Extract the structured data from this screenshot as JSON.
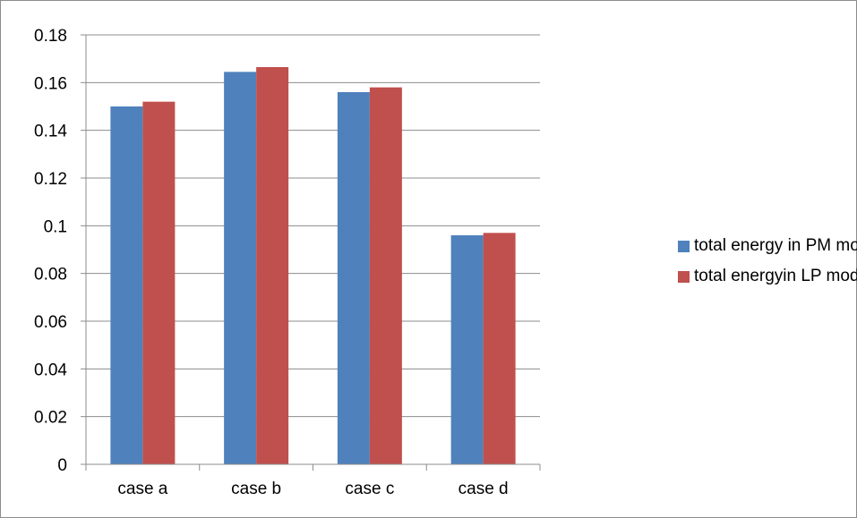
{
  "chart_data": {
    "type": "bar",
    "categories": [
      "case a",
      "case b",
      "case c",
      "case d"
    ],
    "series": [
      {
        "name": "total energy in PM model",
        "color": "#4f81bd",
        "values": [
          0.15,
          0.1645,
          0.156,
          0.096
        ]
      },
      {
        "name": "total energyin LP model",
        "color": "#c0504d",
        "values": [
          0.152,
          0.1665,
          0.158,
          0.097
        ]
      }
    ],
    "yticks": [
      "0",
      "0.02",
      "0.04",
      "0.06",
      "0.08",
      "0.1",
      "0.12",
      "0.14",
      "0.16",
      "0.18"
    ],
    "ylim": [
      0,
      0.18
    ],
    "grid": true,
    "legend_position": "right"
  }
}
